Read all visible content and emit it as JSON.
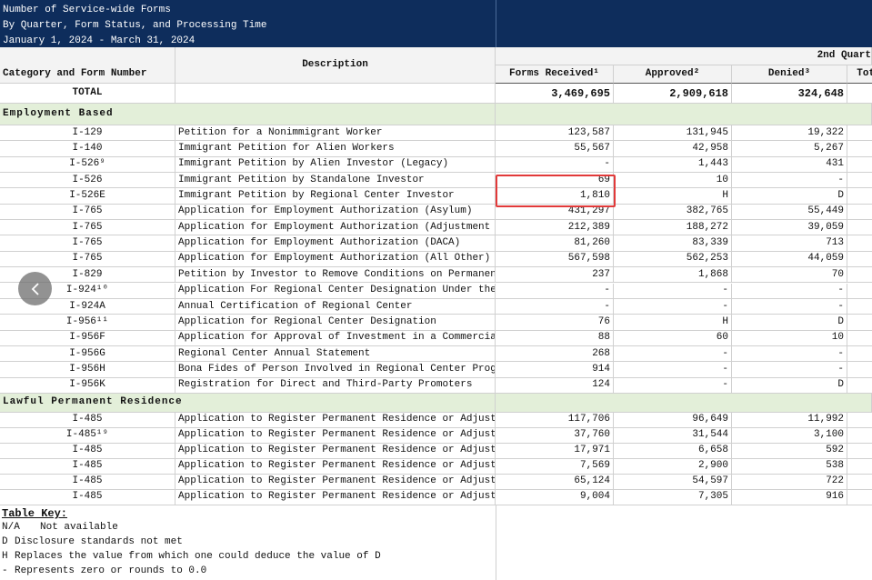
{
  "header": {
    "title_lines": [
      "Number of Service-wide Forms",
      "By Quarter, Form Status, and Processing Time",
      "January 1, 2024 - March 31, 2024"
    ],
    "quarter": "2nd Quart"
  },
  "columns": [
    "Category and Form Number",
    "Description",
    "Forms Received¹",
    "Approved²",
    "Denied³",
    "Tota"
  ],
  "total": {
    "label": "TOTAL",
    "received": "3,469,695",
    "approved": "2,909,618",
    "denied": "324,648"
  },
  "sections": [
    {
      "name": "Employment Based",
      "rows": [
        {
          "form": "I-129",
          "description": "Petition for a Nonimmigrant Worker",
          "received": "123,587",
          "approved": "131,945",
          "denied": "19,322"
        },
        {
          "form": "I-140",
          "description": "Immigrant Petition for Alien Workers",
          "received": "55,567",
          "approved": "42,958",
          "denied": "5,267"
        },
        {
          "form": "I-526⁹",
          "description": "Immigrant Petition by Alien Investor (Legacy)",
          "received": "-",
          "approved": "1,443",
          "denied": "431"
        },
        {
          "form": "I-526",
          "description": "Immigrant Petition by Standalone Investor",
          "received": "69",
          "approved": "10",
          "denied": "-"
        },
        {
          "form": "I-526E",
          "description": "Immigrant Petition by Regional Center Investor",
          "received": "1,810",
          "approved": "H",
          "denied": "D"
        },
        {
          "form": "I-765",
          "description": "Application for Employment Authorization (Asylum)",
          "received": "431,297",
          "approved": "382,765",
          "denied": "55,449"
        },
        {
          "form": "I-765",
          "description": "Application for Employment Authorization (Adjustment O",
          "received": "212,389",
          "approved": "188,272",
          "denied": "39,059"
        },
        {
          "form": "I-765",
          "description": "Application for Employment Authorization (DACA)",
          "received": "81,260",
          "approved": "83,339",
          "denied": "713"
        },
        {
          "form": "I-765",
          "description": "Application for Employment Authorization (All Other)",
          "received": "567,598",
          "approved": "562,253",
          "denied": "44,059"
        },
        {
          "form": "I-829",
          "description": "Petition by Investor to Remove Conditions on Permanent",
          "received": "237",
          "approved": "1,868",
          "denied": "70"
        },
        {
          "form": "I-924¹⁰",
          "description": "Application For Regional Center Designation Under the",
          "received": "-",
          "approved": "-",
          "denied": "-"
        },
        {
          "form": "I-924A",
          "description": "Annual Certification of Regional Center",
          "received": "-",
          "approved": "-",
          "denied": "-"
        },
        {
          "form": "I-956¹¹",
          "description": "Application for Regional Center Designation",
          "received": "76",
          "approved": "H",
          "denied": "D"
        },
        {
          "form": "I-956F",
          "description": "Application for Approval of Investment in a Commercial",
          "received": "88",
          "approved": "60",
          "denied": "10"
        },
        {
          "form": "I-956G",
          "description": "Regional Center Annual Statement",
          "received": "268",
          "approved": "-",
          "denied": "-"
        },
        {
          "form": "I-956H",
          "description": "Bona Fides of Person Involved in Regional Center Progr",
          "received": "914",
          "approved": "-",
          "denied": "-"
        },
        {
          "form": "I-956K",
          "description": "Registration for Direct and Third-Party Promoters",
          "received": "124",
          "approved": "-",
          "denied": "D"
        }
      ]
    },
    {
      "name": "Lawful Permanent Residence",
      "rows": [
        {
          "form": "I-485",
          "description": "Application to Register Permanent Residence or Adjust",
          "received": "117,706",
          "approved": "96,649",
          "denied": "11,992"
        },
        {
          "form": "I-485¹⁹",
          "description": "Application to Register Permanent Residence or Adjust",
          "received": "37,760",
          "approved": "31,544",
          "denied": "3,100"
        },
        {
          "form": "I-485",
          "description": "Application to Register Permanent Residence or Adjust",
          "received": "17,971",
          "approved": "6,658",
          "denied": "592"
        },
        {
          "form": "I-485",
          "description": "Application to Register Permanent Residence or Adjust",
          "received": "7,569",
          "approved": "2,900",
          "denied": "538"
        },
        {
          "form": "I-485",
          "description": "Application to Register Permanent Residence or Adjust",
          "received": "65,124",
          "approved": "54,597",
          "denied": "722"
        },
        {
          "form": "I-485",
          "description": "Application to Register Permanent Residence or Adjust",
          "received": "9,004",
          "approved": "7,305",
          "denied": "916"
        }
      ]
    }
  ],
  "table_key": {
    "title": "Table Key:",
    "items": [
      {
        "code": "N/A",
        "meaning": "Not available"
      },
      {
        "code": "D",
        "meaning": "Disclosure standards not met"
      },
      {
        "code": "H",
        "meaning": "Replaces the value from which one could deduce the value of D"
      },
      {
        "code": "-",
        "meaning": "Represents zero or rounds to 0.0"
      }
    ]
  }
}
